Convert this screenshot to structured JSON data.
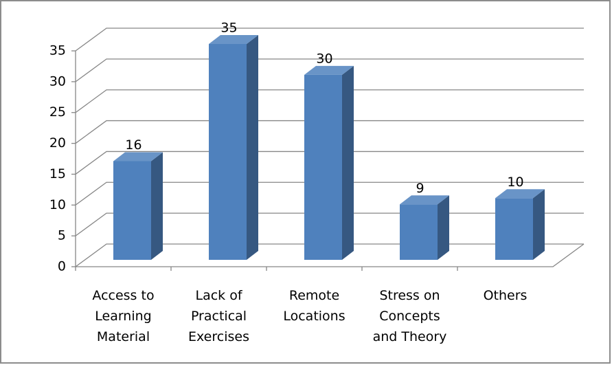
{
  "chart_data": {
    "type": "bar3d",
    "categories": [
      "Access to Learning Material",
      "Lack of Practical Exercises",
      "Remote Locations",
      "Stress on Concepts and Theory",
      "Others"
    ],
    "values": [
      16,
      35,
      30,
      9,
      10
    ],
    "color": "#4f81bd",
    "ylim": [
      0,
      35
    ],
    "yticks": [
      0,
      5,
      10,
      15,
      20,
      25,
      30,
      35
    ],
    "grid": true
  }
}
